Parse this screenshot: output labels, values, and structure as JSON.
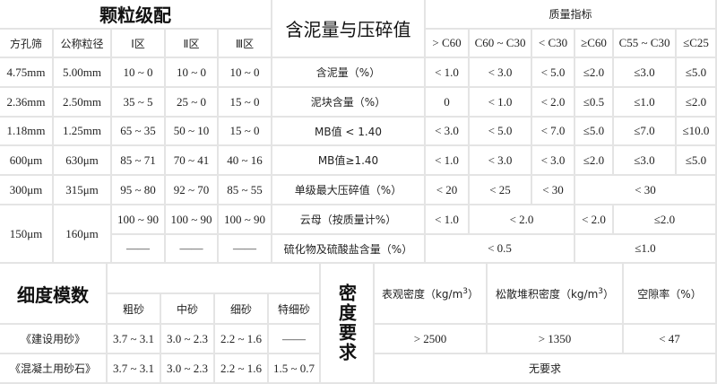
{
  "grading": {
    "title": "颗粒级配",
    "headers": [
      "方孔筛",
      "公称粒径",
      "Ⅰ区",
      "Ⅱ区",
      "Ⅲ区"
    ],
    "rows": [
      [
        "4.75mm",
        "5.00mm",
        "10 ~ 0",
        "10 ~ 0",
        "10 ~ 0"
      ],
      [
        "2.36mm",
        "2.50mm",
        "35 ~ 5",
        "25 ~ 0",
        "15 ~ 0"
      ],
      [
        "1.18mm",
        "1.25mm",
        "65 ~ 35",
        "50 ~ 10",
        "15 ~ 0"
      ],
      [
        "600μm",
        "630μm",
        "85 ~ 71",
        "70 ~ 41",
        "40 ~ 16"
      ],
      [
        "300μm",
        "315μm",
        "95 ~ 80",
        "92 ~ 70",
        "85 ~ 55"
      ],
      [
        "150μm",
        "160μm",
        "100 ~ 90",
        "100 ~ 90",
        "100 ~ 90"
      ]
    ],
    "dash": "——"
  },
  "quality": {
    "title": "含泥量与压碎值",
    "header": "质量指标",
    "grades": [
      "> C60",
      "C60 ~ C30",
      "< C30",
      "≥C60",
      "C55 ~ C30",
      "≤C25"
    ],
    "labels": [
      "含泥量（%）",
      "泥块含量（%）",
      "MB值 < 1.40",
      "MB值≥1.40",
      "单级最大压碎值（%）",
      "云母（按质量计%）",
      "硫化物及硫酸盐含量（%）"
    ],
    "rows": [
      [
        "< 1.0",
        "< 3.0",
        "< 5.0",
        "≤2.0",
        "≤3.0",
        "≤5.0"
      ],
      [
        "0",
        "< 1.0",
        "< 2.0",
        "≤0.5",
        "≤1.0",
        "≤2.0"
      ],
      [
        "< 3.0",
        "< 5.0",
        "< 7.0",
        "≤5.0",
        "≤7.0",
        "≤10.0"
      ],
      [
        "< 1.0",
        "< 3.0",
        "< 3.0",
        "≤2.0",
        "≤3.0",
        "≤5.0"
      ],
      [
        "< 20",
        "< 25",
        "< 30",
        "< 30"
      ],
      [
        "< 1.0",
        "< 2.0",
        "< 2.0",
        "≤2.0"
      ],
      [
        "< 0.5",
        "≤1.0"
      ]
    ]
  },
  "fineness": {
    "title": "细度模数",
    "headers": [
      "粗砂",
      "中砂",
      "细砂",
      "特细砂"
    ],
    "rows": [
      {
        "label": "《建设用砂》",
        "values": [
          "3.7 ~ 3.1",
          "3.0 ~ 2.3",
          "2.2 ~ 1.6",
          "——"
        ]
      },
      {
        "label": "《混凝土用砂石》",
        "values": [
          "3.7 ~ 3.1",
          "3.0 ~ 2.3",
          "2.2 ~ 1.6",
          "1.5 ~ 0.7"
        ]
      }
    ]
  },
  "density": {
    "title": "密度要求",
    "headers": [
      "表观密度（kg/m",
      "松散堆积密度（kg/m",
      "空隙率（%）"
    ],
    "sup": "3",
    "close": "）",
    "row1": [
      "> 2500",
      "> 1350",
      "< 47"
    ],
    "row2": "无要求"
  }
}
